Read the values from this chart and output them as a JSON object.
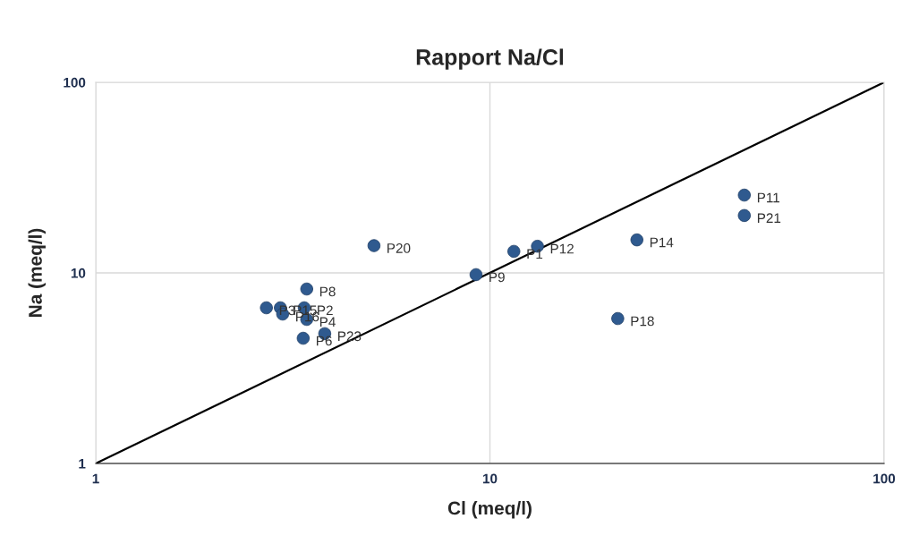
{
  "chart_data": {
    "type": "scatter",
    "title": "Rapport Na/Cl",
    "xlabel": "Cl (meq/l)",
    "ylabel": "Na (meq/l)",
    "log": "xy",
    "xlim": [
      1,
      100
    ],
    "ylim": [
      1,
      100
    ],
    "xticks": [
      1,
      10,
      100
    ],
    "yticks": [
      1,
      10,
      100
    ],
    "grid": true,
    "marker": "circle",
    "series": [
      {
        "color": "#2f5a8f",
        "x": [
          11.5,
          3.38,
          2.71,
          3.43,
          3.36,
          3.43,
          9.22,
          44.2,
          13.2,
          23.6,
          2.94,
          2.98,
          21.1,
          5.08,
          44.2,
          3.81
        ],
        "values": [
          12.97,
          6.56,
          6.56,
          5.7,
          4.54,
          8.23,
          9.79,
          25.6,
          13.8,
          14.9,
          6.56,
          6.08,
          5.76,
          13.9,
          20.0,
          4.8
        ]
      },
      {
        "type": "line",
        "color": "#000000",
        "marker": "none",
        "x": [
          1,
          100
        ],
        "values": [
          1,
          100
        ]
      }
    ],
    "annotations": [
      {
        "text": "P1",
        "x": 11.5,
        "y": 12.97
      },
      {
        "text": "P2",
        "x": 3.38,
        "y": 6.56
      },
      {
        "text": "P3",
        "x": 2.71,
        "y": 6.56
      },
      {
        "text": "P4",
        "x": 3.43,
        "y": 5.7
      },
      {
        "text": "P6",
        "x": 3.36,
        "y": 4.54
      },
      {
        "text": "P8",
        "x": 3.43,
        "y": 8.23
      },
      {
        "text": "P9",
        "x": 9.22,
        "y": 9.79
      },
      {
        "text": "P11",
        "x": 44.2,
        "y": 25.6
      },
      {
        "text": "P12",
        "x": 13.2,
        "y": 13.8
      },
      {
        "text": "P14",
        "x": 23.6,
        "y": 14.9
      },
      {
        "text": "P15",
        "x": 2.94,
        "y": 6.56
      },
      {
        "text": "P16",
        "x": 2.98,
        "y": 6.08
      },
      {
        "text": "P18",
        "x": 21.1,
        "y": 5.76
      },
      {
        "text": "P20",
        "x": 5.08,
        "y": 13.9
      },
      {
        "text": "P21",
        "x": 44.2,
        "y": 20.0
      },
      {
        "text": "P23",
        "x": 3.81,
        "y": 4.8
      }
    ]
  }
}
